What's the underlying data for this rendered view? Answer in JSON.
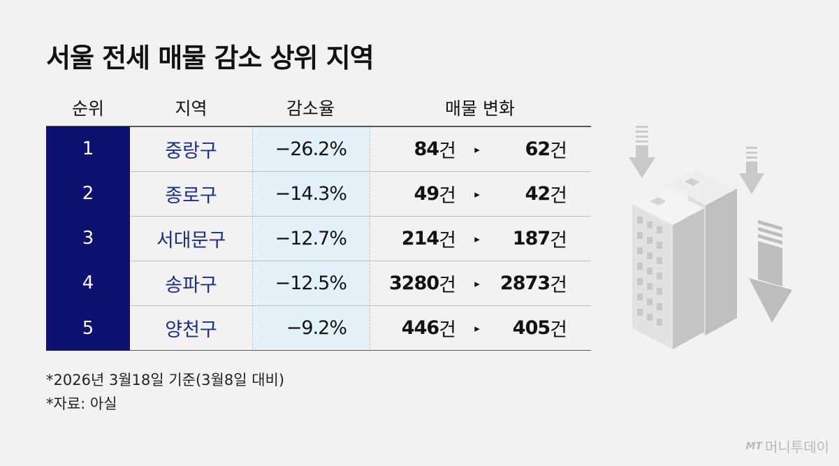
{
  "title": "서울 전세 매물 감소 상위 지역",
  "headers": {
    "rank": "순위",
    "region": "지역",
    "rate": "감소율",
    "change": "매물 변화"
  },
  "unit": "건",
  "arrow": "▸",
  "rows": [
    {
      "rank": "1",
      "region": "중랑구",
      "rate": "−26.2%",
      "from": "84",
      "to": "62"
    },
    {
      "rank": "2",
      "region": "종로구",
      "rate": "−14.3%",
      "from": "49",
      "to": "42"
    },
    {
      "rank": "3",
      "region": "서대문구",
      "rate": "−12.7%",
      "from": "214",
      "to": "187"
    },
    {
      "rank": "4",
      "region": "송파구",
      "rate": "−12.5%",
      "from": "3280",
      "to": "2873"
    },
    {
      "rank": "5",
      "region": "양천구",
      "rate": "−9.2%",
      "from": "446",
      "to": "405"
    }
  ],
  "notes": {
    "date": "*2026년 3월18일 기준(3월8일 대비)",
    "source": "*자료: 아실"
  },
  "logo": {
    "mark": "MT",
    "name": "머니투데이"
  },
  "colors": {
    "rank_bg": "#0d1170",
    "region_text": "#1a2c8c",
    "rate_bg": "#e3f2f9"
  }
}
